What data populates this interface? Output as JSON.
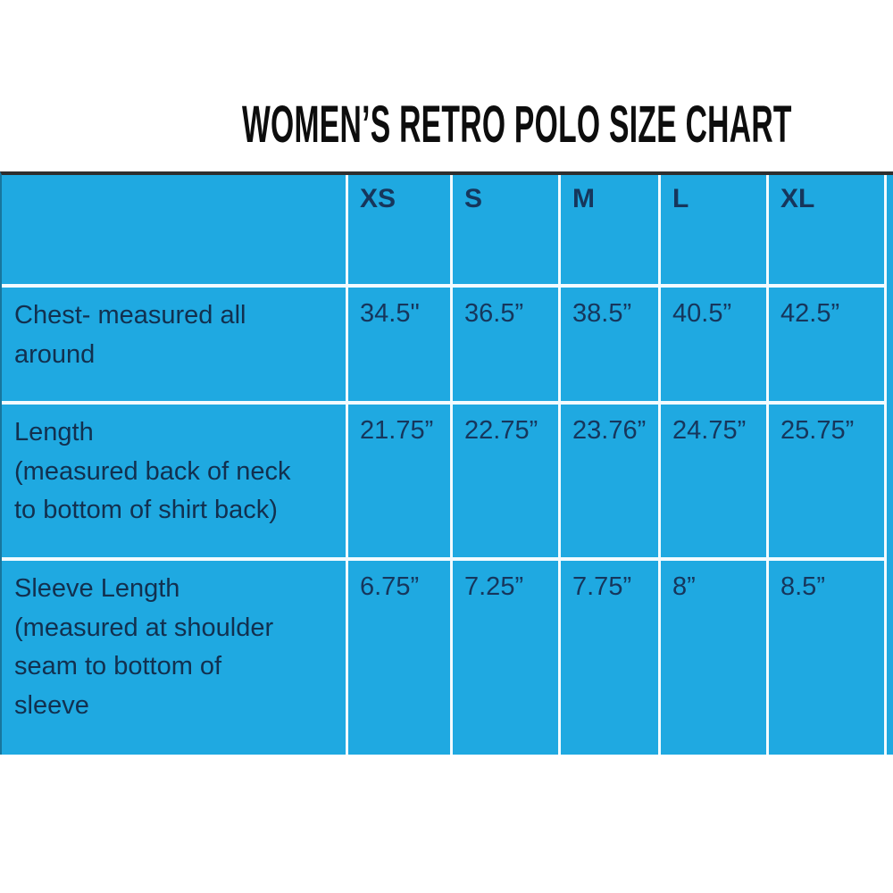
{
  "title": "WOMEN’S RETRO POLO SIZE CHART",
  "table": {
    "corner_label": "",
    "columns": [
      "XS",
      "S",
      "M",
      "L",
      "XL"
    ],
    "rows": [
      {
        "label": "Chest- measured all\naround",
        "values": [
          "34.5\"",
          "36.5”",
          "38.5”",
          "40.5”",
          "42.5”"
        ]
      },
      {
        "label": "Length\n(measured back of neck\nto bottom of shirt back)",
        "values": [
          "21.75”",
          "22.75”",
          "23.76”",
          "24.75”",
          "25.75”"
        ]
      },
      {
        "label": "Sleeve Length\n(measured at shoulder\nseam to bottom of\nsleeve",
        "values": [
          "6.75”",
          "7.25”",
          "7.75”",
          "8”",
          "8.5”"
        ]
      }
    ]
  },
  "chart_data": {
    "type": "table",
    "title": "WOMEN’S RETRO POLO SIZE CHART",
    "columns": [
      "XS",
      "S",
      "M",
      "L",
      "XL"
    ],
    "rows": [
      {
        "label": "Chest- measured all around",
        "values_inches": [
          34.5,
          36.5,
          38.5,
          40.5,
          42.5
        ]
      },
      {
        "label": "Length (measured back of neck to bottom of shirt back)",
        "values_inches": [
          21.75,
          22.75,
          23.76,
          24.75,
          25.75
        ]
      },
      {
        "label": "Sleeve Length (measured at shoulder seam to bottom of sleeve",
        "values_inches": [
          6.75,
          7.25,
          7.75,
          8.0,
          8.5
        ]
      }
    ],
    "units": "inches"
  },
  "colors": {
    "table_background": "#1fa9e1",
    "grid_line": "#f2fbff",
    "top_border": "#2e2e2e",
    "cell_text": "#16365c",
    "title_text": "#0d0d0d",
    "page_background": "#ffffff"
  }
}
